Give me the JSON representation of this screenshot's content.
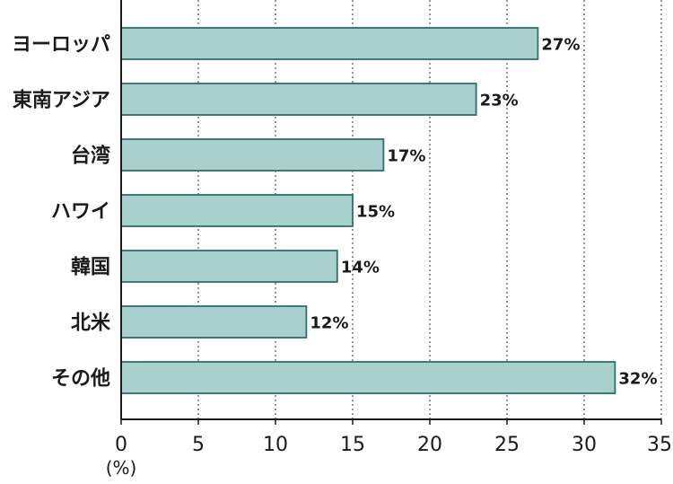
{
  "chart_data": {
    "type": "bar",
    "orientation": "horizontal",
    "categories": [
      "ヨーロッパ",
      "東南アジア",
      "台湾",
      "ハワイ",
      "韓国",
      "北米",
      "その他"
    ],
    "values": [
      27,
      23,
      17,
      15,
      14,
      12,
      32
    ],
    "value_labels": [
      "27%",
      "23%",
      "17%",
      "15%",
      "14%",
      "12%",
      "32%"
    ],
    "title": "",
    "xlabel": "(%)",
    "ylabel": "",
    "xlim": [
      0,
      35
    ],
    "x_ticks": [
      0,
      5,
      10,
      15,
      20,
      25,
      30,
      35
    ],
    "x_tick_labels": [
      "0",
      "5",
      "10",
      "15",
      "20",
      "25",
      "30",
      "35"
    ],
    "grid": "vertical dotted",
    "legend": "none",
    "colors": {
      "bar_fill": "#a8d0cd",
      "bar_stroke": "#2f6e6b",
      "grid": "#555555",
      "axis": "#1a1a1a"
    }
  }
}
